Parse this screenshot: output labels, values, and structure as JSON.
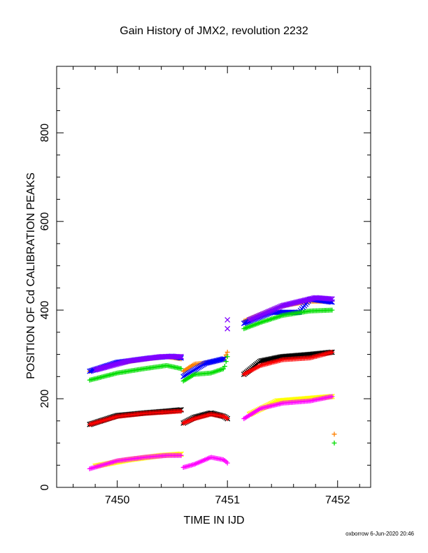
{
  "chart_data": {
    "type": "scatter",
    "title": "Gain History of JMX2, revolution 2232",
    "xlabel": "TIME IN IJD",
    "ylabel": "POSITION OF Cd CALIBRATION PEAKS",
    "xlim": [
      7449.45,
      7452.3
    ],
    "ylim": [
      0,
      950
    ],
    "x_ticks": [
      7450,
      7451,
      7452
    ],
    "x_tick_labels": [
      "7450",
      "7451",
      "7452"
    ],
    "y_ticks": [
      0,
      200,
      400,
      600,
      800
    ],
    "y_tick_labels": [
      "0",
      "200",
      "400",
      "600",
      "800"
    ],
    "grid": false,
    "footer": "oxborrow  6-Jun-2020 20:46",
    "series": [
      {
        "color": "#ff8000",
        "marker": "plus",
        "segments": [
          [
            [
              7449.75,
              262
            ],
            [
              7450.0,
              280
            ],
            [
              7450.25,
              290
            ],
            [
              7450.45,
              295
            ],
            [
              7450.58,
              290
            ]
          ],
          [
            [
              7450.6,
              262
            ],
            [
              7450.7,
              278
            ],
            [
              7450.85,
              282
            ],
            [
              7450.97,
              290
            ],
            [
              7451.0,
              305
            ]
          ],
          [
            [
              7451.15,
              375
            ],
            [
              7451.3,
              390
            ],
            [
              7451.5,
              410
            ],
            [
              7451.75,
              420
            ],
            [
              7451.95,
              420
            ]
          ]
        ],
        "extra_points": [
          [
            7451.97,
            120
          ]
        ]
      },
      {
        "color": "#0000ff",
        "marker": "cross",
        "segments": [
          [
            [
              7449.75,
              262
            ],
            [
              7450.0,
              282
            ],
            [
              7450.3,
              292
            ],
            [
              7450.5,
              296
            ],
            [
              7450.58,
              292
            ]
          ],
          [
            [
              7450.6,
              250
            ],
            [
              7450.8,
              280
            ],
            [
              7450.97,
              290
            ]
          ],
          [
            [
              7451.15,
              370
            ],
            [
              7451.4,
              395
            ],
            [
              7451.65,
              395
            ],
            [
              7451.75,
              425
            ],
            [
              7451.95,
              418
            ]
          ]
        ],
        "extra_points": []
      },
      {
        "color": "#8000ff",
        "marker": "cross",
        "segments": [
          [
            [
              7449.8,
              265
            ],
            [
              7450.1,
              285
            ],
            [
              7450.4,
              295
            ],
            [
              7450.58,
              295
            ]
          ],
          [
            [
              7451.2,
              378
            ],
            [
              7451.5,
              410
            ],
            [
              7451.8,
              428
            ],
            [
              7451.95,
              425
            ]
          ]
        ],
        "extra_points": [
          [
            7451.0,
            378
          ],
          [
            7451.0,
            358
          ]
        ]
      },
      {
        "color": "#00dd00",
        "marker": "plus",
        "segments": [
          [
            [
              7449.75,
              242
            ],
            [
              7450.0,
              258
            ],
            [
              7450.25,
              268
            ],
            [
              7450.45,
              275
            ],
            [
              7450.58,
              268
            ]
          ],
          [
            [
              7450.6,
              240
            ],
            [
              7450.7,
              255
            ],
            [
              7450.85,
              258
            ],
            [
              7450.97,
              268
            ],
            [
              7451.0,
              295
            ]
          ],
          [
            [
              7451.15,
              358
            ],
            [
              7451.3,
              372
            ],
            [
              7451.5,
              388
            ],
            [
              7451.75,
              398
            ],
            [
              7451.95,
              400
            ]
          ]
        ],
        "extra_points": [
          [
            7451.97,
            100
          ]
        ]
      },
      {
        "color": "#000000",
        "marker": "cross",
        "segments": [
          [
            [
              7449.75,
              142
            ],
            [
              7450.0,
              162
            ],
            [
              7450.25,
              168
            ],
            [
              7450.45,
              172
            ],
            [
              7450.58,
              175
            ]
          ],
          [
            [
              7450.6,
              145
            ],
            [
              7450.7,
              158
            ],
            [
              7450.85,
              168
            ],
            [
              7450.97,
              160
            ],
            [
              7451.0,
              155
            ]
          ],
          [
            [
              7451.15,
              255
            ],
            [
              7451.3,
              285
            ],
            [
              7451.5,
              295
            ],
            [
              7451.75,
              300
            ],
            [
              7451.95,
              305
            ]
          ]
        ],
        "extra_points": []
      },
      {
        "color": "#ff0000",
        "marker": "plus",
        "segments": [
          [
            [
              7449.75,
              142
            ],
            [
              7450.0,
              160
            ],
            [
              7450.25,
              167
            ],
            [
              7450.45,
              170
            ],
            [
              7450.58,
              172
            ]
          ],
          [
            [
              7450.6,
              145
            ],
            [
              7450.7,
              155
            ],
            [
              7450.85,
              165
            ],
            [
              7450.97,
              160
            ],
            [
              7451.0,
              155
            ]
          ],
          [
            [
              7451.15,
              255
            ],
            [
              7451.3,
              275
            ],
            [
              7451.5,
              288
            ],
            [
              7451.75,
              292
            ],
            [
              7451.95,
              305
            ]
          ]
        ],
        "extra_points": []
      },
      {
        "color": "#ffff00",
        "marker": "cross",
        "segments": [
          [
            [
              7449.8,
              48
            ],
            [
              7450.1,
              62
            ],
            [
              7450.4,
              72
            ],
            [
              7450.58,
              75
            ]
          ],
          [
            [
              7451.2,
              165
            ],
            [
              7451.45,
              195
            ],
            [
              7451.7,
              200
            ],
            [
              7451.95,
              205
            ]
          ]
        ],
        "extra_points": []
      },
      {
        "color": "#ff00ff",
        "marker": "plus",
        "segments": [
          [
            [
              7449.75,
              42
            ],
            [
              7450.0,
              60
            ],
            [
              7450.25,
              68
            ],
            [
              7450.45,
              72
            ],
            [
              7450.58,
              72
            ]
          ],
          [
            [
              7450.6,
              45
            ],
            [
              7450.7,
              52
            ],
            [
              7450.85,
              68
            ],
            [
              7450.97,
              62
            ],
            [
              7451.0,
              55
            ]
          ],
          [
            [
              7451.15,
              155
            ],
            [
              7451.3,
              178
            ],
            [
              7451.5,
              190
            ],
            [
              7451.75,
              195
            ],
            [
              7451.95,
              205
            ]
          ]
        ],
        "extra_points": []
      }
    ]
  }
}
